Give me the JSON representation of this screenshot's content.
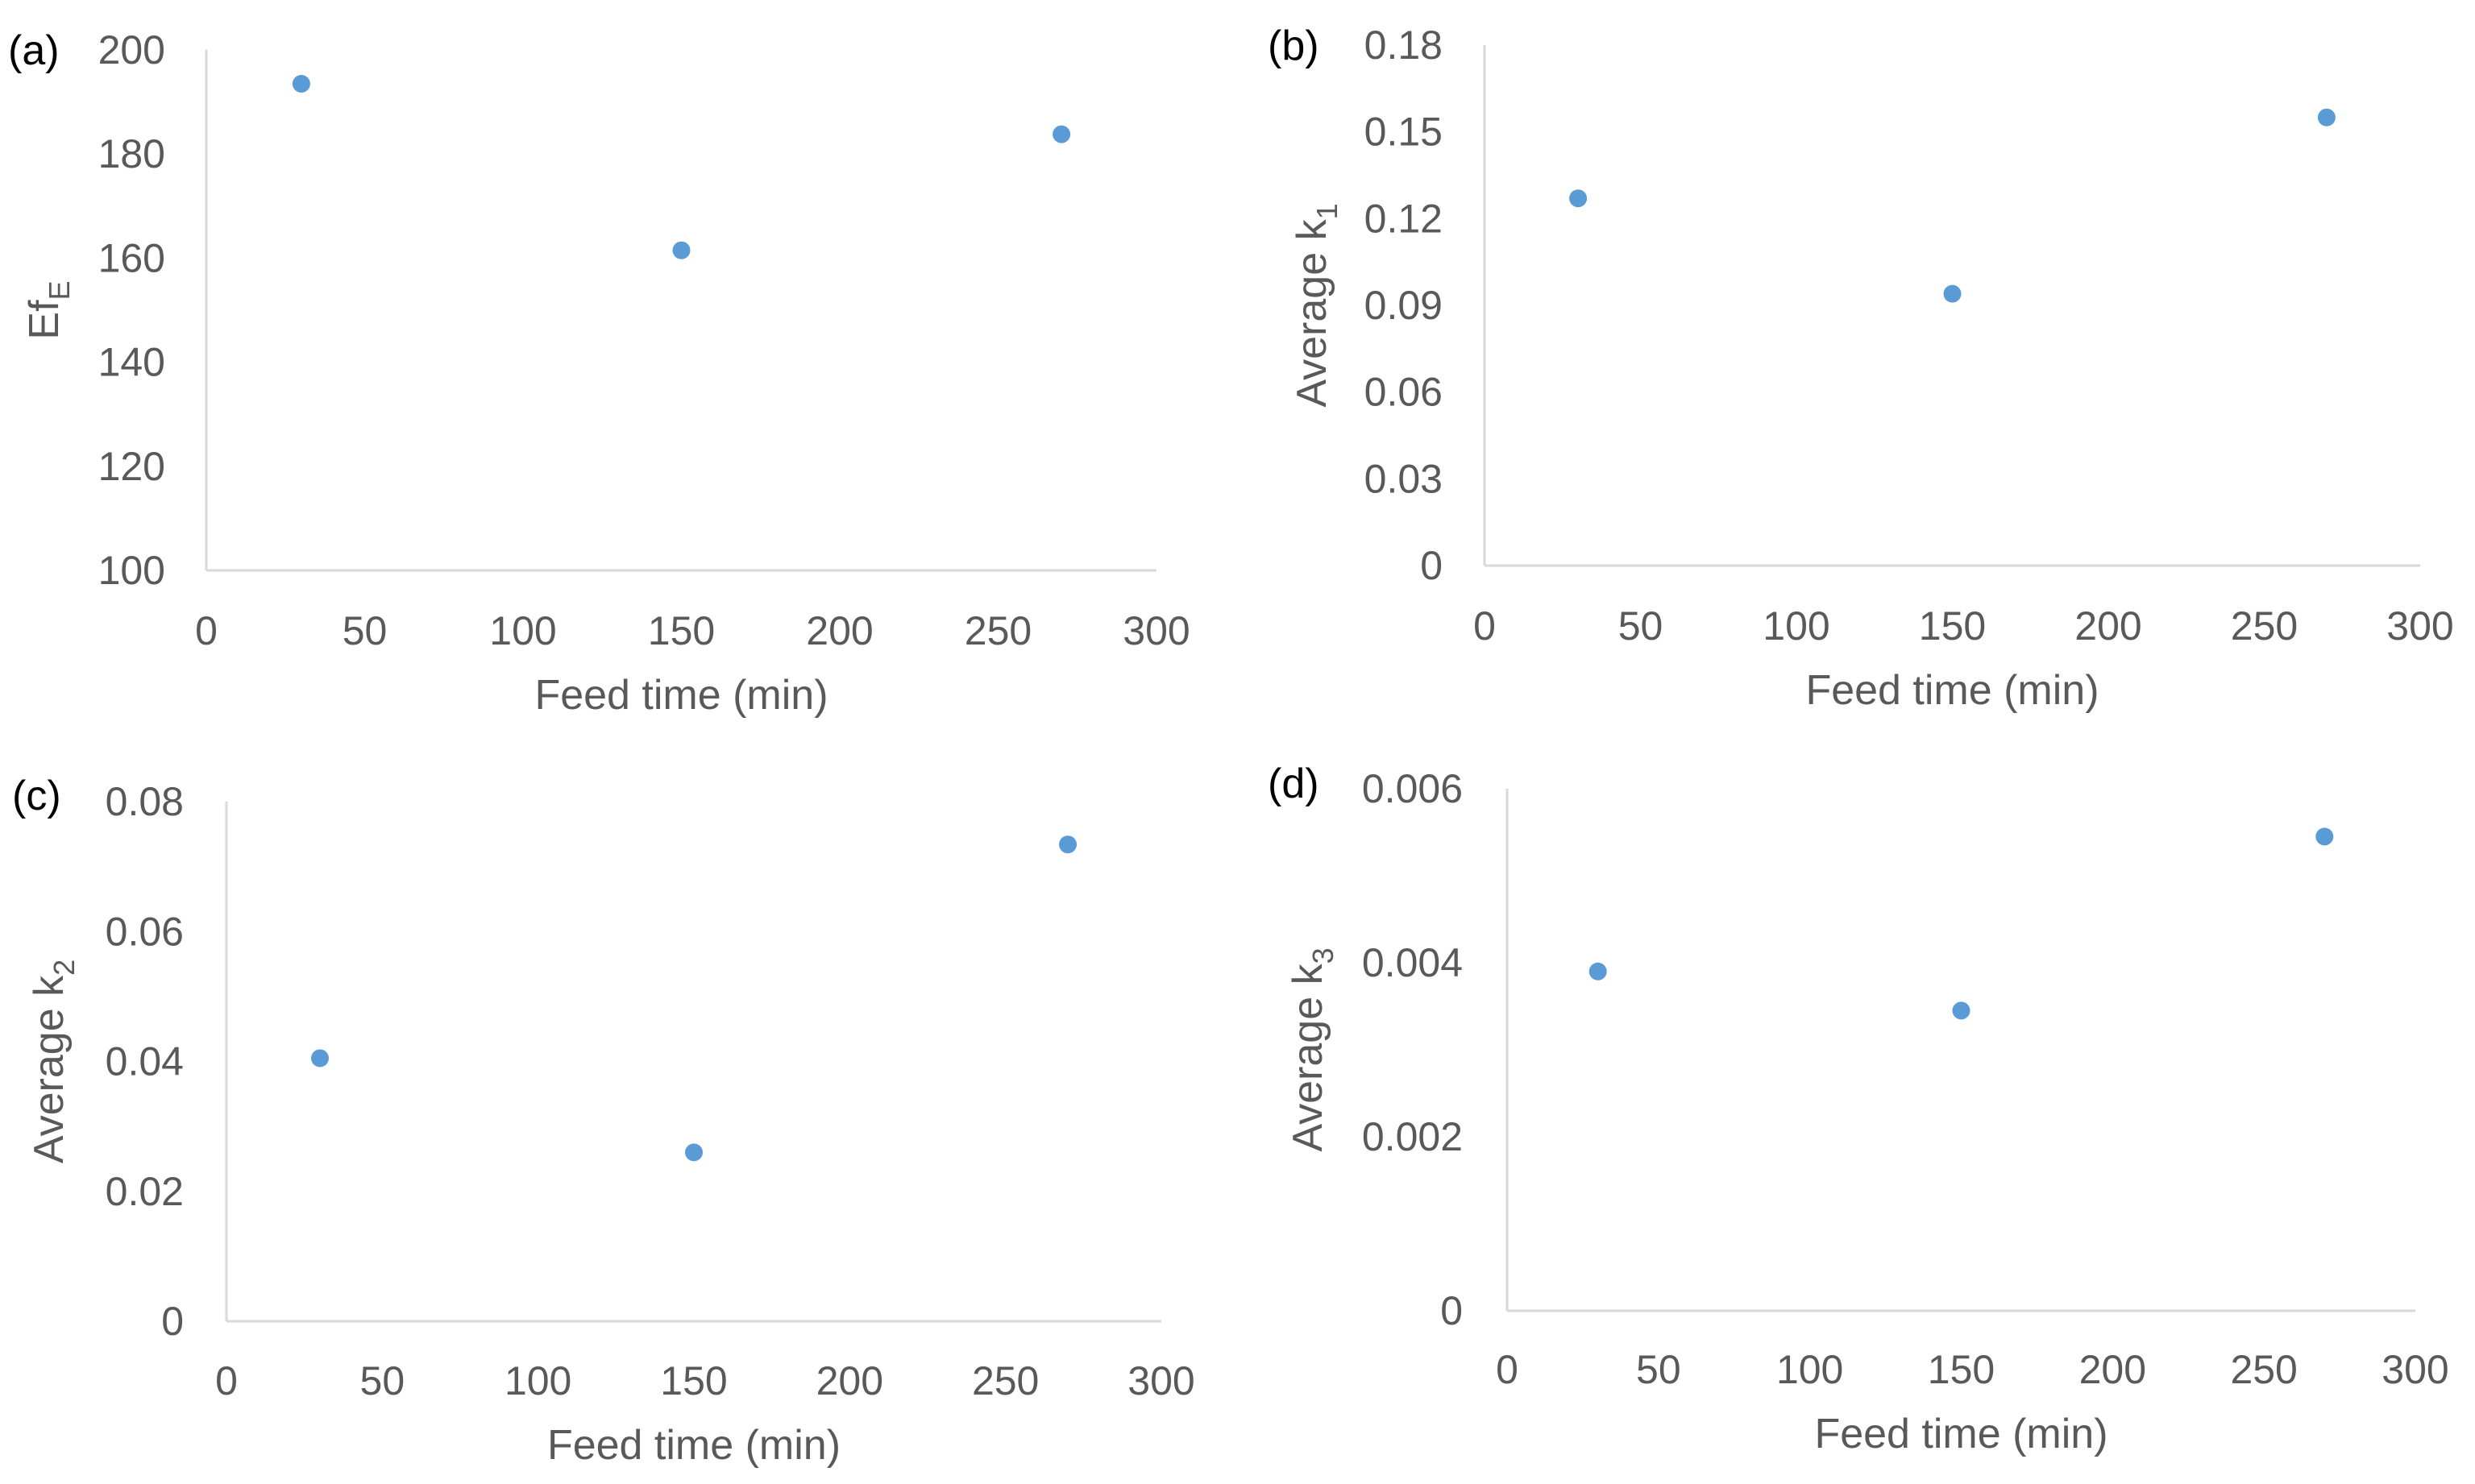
{
  "chart_data": [
    {
      "panel": "(a)",
      "type": "scatter",
      "xlabel": "Feed time (min)",
      "ylabel": "Ef",
      "ylabel_sub": "E",
      "xlim": [
        0,
        300
      ],
      "ylim": [
        100,
        200
      ],
      "xticks": [
        "0",
        "50",
        "100",
        "150",
        "200",
        "250",
        "300"
      ],
      "yticks": [
        "100",
        "120",
        "140",
        "160",
        "180",
        "200"
      ],
      "x": [
        30,
        150,
        270
      ],
      "y": [
        193.5,
        161.5,
        183.8
      ]
    },
    {
      "panel": "(b)",
      "type": "scatter",
      "xlabel": "Feed time (min)",
      "ylabel": "Average k",
      "ylabel_sub": "1",
      "xlim": [
        0,
        300
      ],
      "ylim": [
        0,
        0.18
      ],
      "xticks": [
        "0",
        "50",
        "100",
        "150",
        "200",
        "250",
        "300"
      ],
      "yticks": [
        "0",
        "0.03",
        "0.06",
        "0.09",
        "0.12",
        "0.15",
        "0.18"
      ],
      "x": [
        30,
        150,
        270
      ],
      "y": [
        0.127,
        0.094,
        0.155
      ]
    },
    {
      "panel": "(c)",
      "type": "scatter",
      "xlabel": "Feed time (min)",
      "ylabel": "Average k",
      "ylabel_sub": "2",
      "xlim": [
        0,
        300
      ],
      "ylim": [
        0,
        0.08
      ],
      "xticks": [
        "0",
        "50",
        "100",
        "150",
        "200",
        "250",
        "300"
      ],
      "yticks": [
        "0",
        "0.02",
        "0.04",
        "0.06",
        "0.08"
      ],
      "x": [
        30,
        150,
        270
      ],
      "y": [
        0.0405,
        0.026,
        0.0734
      ]
    },
    {
      "panel": "(d)",
      "type": "scatter",
      "xlabel": "Feed time (min)",
      "ylabel": "Average k",
      "ylabel_sub": "3",
      "xlim": [
        0,
        300
      ],
      "ylim": [
        0,
        0.006
      ],
      "xticks": [
        "0",
        "50",
        "100",
        "150",
        "200",
        "250",
        "300"
      ],
      "yticks": [
        "0",
        "0.002",
        "0.004",
        "0.006"
      ],
      "x": [
        30,
        150,
        270
      ],
      "y": [
        0.0039,
        0.00345,
        0.00545
      ]
    }
  ],
  "colors": {
    "point": "#5b9bd5",
    "axis": "#d9d9d9",
    "text": "#595959",
    "panel_label": "#000000"
  }
}
